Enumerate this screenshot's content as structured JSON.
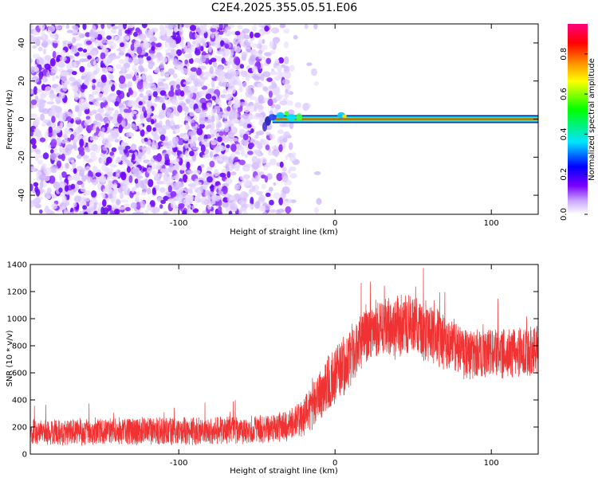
{
  "title": "C2E4.2025.355.05.51.E06",
  "chart_data": [
    {
      "type": "heatmap",
      "name": "spectrogram",
      "xlabel": "Height of straight line (km)",
      "ylabel": "Frequency (Hz)",
      "xlim": [
        -195,
        130
      ],
      "ylim": [
        -50,
        50
      ],
      "xticks": [
        -100,
        0,
        100
      ],
      "yticks": [
        -40,
        -20,
        0,
        20,
        40
      ],
      "line_frequency_hz": 0,
      "line_start_km": -45,
      "noise_end_km": -25,
      "colorbar": {
        "label": "Normalized spectral amplitude",
        "range": [
          0.0,
          0.95
        ],
        "ticks": [
          0.0,
          0.2,
          0.4,
          0.6,
          0.8
        ],
        "tick_labels": [
          "0.0",
          "0.2",
          "0.4",
          "0.6",
          "0.8"
        ],
        "colors": [
          "#ffffff",
          "#7b00ff",
          "#0000ff",
          "#00e5ff",
          "#00ff00",
          "#ffff00",
          "#ff8800",
          "#ff0000",
          "#ff0080"
        ]
      }
    },
    {
      "type": "line",
      "name": "snr",
      "xlabel": "Height of straight line (km)",
      "ylabel": "SNR (10 * v/v)",
      "xlim": [
        -195,
        130
      ],
      "ylim": [
        0,
        1400
      ],
      "xticks": [
        -100,
        0,
        100
      ],
      "yticks": [
        0,
        200,
        400,
        600,
        800,
        1000,
        1200,
        1400
      ],
      "color": "#f03232",
      "envelope": {
        "x": [
          -195,
          -150,
          -100,
          -50,
          -30,
          -20,
          -10,
          0,
          10,
          20,
          30,
          40,
          50,
          60,
          70,
          80,
          90,
          100,
          110,
          120,
          130
        ],
        "mean": [
          160,
          165,
          170,
          180,
          210,
          280,
          420,
          580,
          720,
          880,
          940,
          960,
          950,
          900,
          830,
          760,
          730,
          740,
          750,
          750,
          760
        ],
        "spread": [
          130,
          140,
          140,
          140,
          150,
          200,
          250,
          300,
          300,
          280,
          300,
          320,
          320,
          300,
          280,
          260,
          250,
          250,
          260,
          260,
          260
        ]
      }
    }
  ]
}
